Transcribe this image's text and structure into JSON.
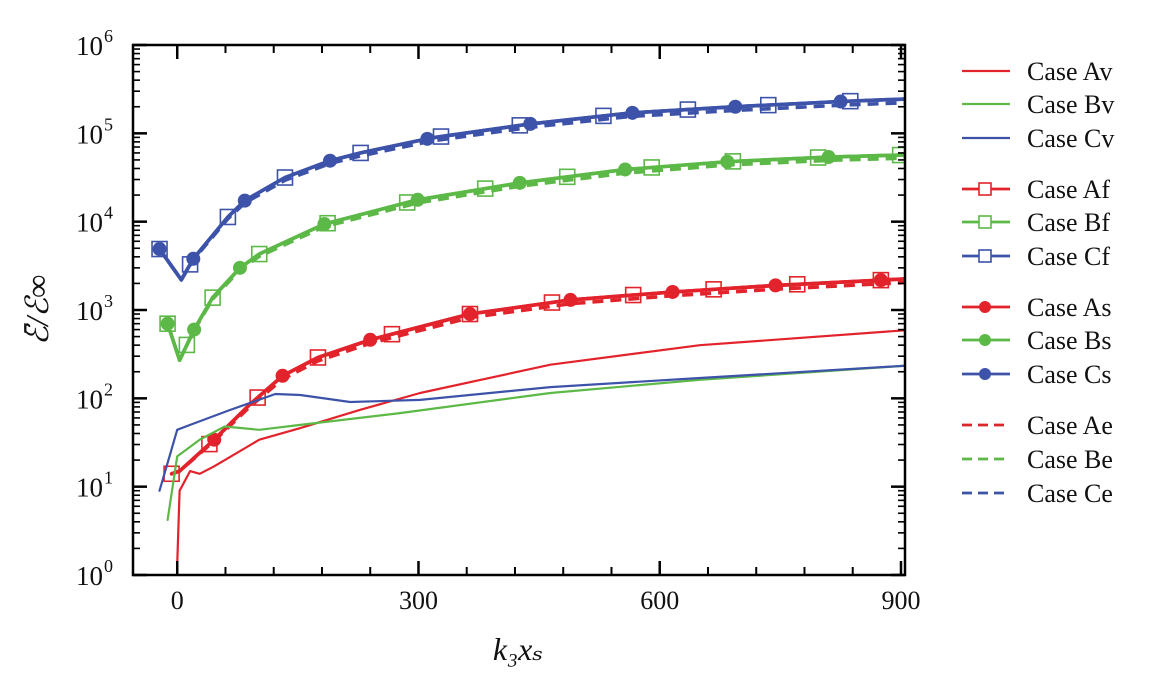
{
  "chart_data": {
    "type": "line",
    "xlabel": "k₃xₛ",
    "ylabel": "ℰ̄/ℰ∞",
    "xlim": [
      -55,
      905
    ],
    "ylim": [
      1,
      1000000
    ],
    "yscale": "log",
    "xticks": [
      0,
      300,
      600,
      900
    ],
    "xtick_labels": [
      "0",
      "300",
      "600",
      "900"
    ],
    "yticks": [
      1,
      10,
      100,
      1000,
      10000,
      100000,
      1000000
    ],
    "ytick_labels": [
      {
        "base": "10",
        "exp": "0"
      },
      {
        "base": "10",
        "exp": "1"
      },
      {
        "base": "10",
        "exp": "2"
      },
      {
        "base": "10",
        "exp": "3"
      },
      {
        "base": "10",
        "exp": "4"
      },
      {
        "base": "10",
        "exp": "5"
      },
      {
        "base": "10",
        "exp": "6"
      }
    ],
    "grid": false,
    "legend_placement": "right-outside",
    "colors": {
      "A": "#e3232b",
      "B": "#5cb947",
      "C": "#3d52a9"
    },
    "series": [
      {
        "name": "Case Av",
        "group": "A",
        "style": "v",
        "x": [
          0,
          3,
          16,
          28,
          46,
          102,
          153,
          227,
          302,
          464,
          650,
          906
        ],
        "y": [
          1.3,
          9,
          15,
          14,
          17,
          34,
          46,
          74,
          115,
          240,
          400,
          590
        ]
      },
      {
        "name": "Case Bv",
        "group": "B",
        "style": "v",
        "x": [
          -12,
          0,
          28,
          59,
          102,
          153,
          277,
          464,
          650,
          906
        ],
        "y": [
          4.2,
          22,
          34,
          48,
          44,
          50,
          68,
          115,
          162,
          234
        ]
      },
      {
        "name": "Case Cv",
        "group": "C",
        "style": "v",
        "x": [
          -22,
          -9,
          0,
          16,
          66,
          122,
          153,
          215,
          302,
          464,
          650,
          906
        ],
        "y": [
          9,
          23,
          44,
          50,
          74,
          112,
          109,
          91,
          96,
          134,
          170,
          234
        ]
      },
      {
        "name": "Case Af",
        "group": "A",
        "style": "f",
        "x": [
          -7,
          3,
          46,
          90,
          131,
          175,
          240,
          364,
          489,
          616,
          744,
          906
        ],
        "y": [
          14,
          15,
          34,
          85,
          180,
          290,
          460,
          900,
          1300,
          1600,
          1900,
          2250
        ],
        "markers_x": [
          -7,
          40,
          100,
          175,
          267,
          364,
          466,
          567,
          667,
          771,
          875
        ]
      },
      {
        "name": "Case Bf",
        "group": "B",
        "style": "f",
        "x": [
          -12,
          3,
          21,
          44,
          78,
          102,
          183,
          299,
          426,
          557,
          688,
          812,
          906
        ],
        "y": [
          700,
          270,
          600,
          1380,
          3000,
          4300,
          9400,
          17700,
          27500,
          39000,
          48000,
          54000,
          57000
        ],
        "markers_x": [
          -12,
          12,
          44,
          102,
          187,
          286,
          383,
          485,
          590,
          691,
          797,
          899
        ]
      },
      {
        "name": "Case Cf",
        "group": "C",
        "style": "f",
        "x": [
          -22,
          5,
          20,
          63,
          84,
          134,
          190,
          228,
          317,
          439,
          563,
          694,
          825,
          906
        ],
        "y": [
          4900,
          2200,
          3800,
          11300,
          17300,
          31600,
          49000,
          60000,
          89000,
          128000,
          170000,
          200000,
          229000,
          245000
        ],
        "markers_x": [
          -22,
          16,
          63,
          134,
          228,
          328,
          426,
          530,
          635,
          735,
          837
        ]
      },
      {
        "name": "Case As",
        "group": "A",
        "style": "s",
        "x": [
          -7,
          3,
          46,
          90,
          131,
          175,
          240,
          364,
          489,
          616,
          744,
          906
        ],
        "y": [
          14,
          15,
          34,
          85,
          180,
          290,
          460,
          900,
          1300,
          1600,
          1900,
          2250
        ],
        "markers_x": [
          46,
          131,
          240,
          364,
          489,
          616,
          744,
          875
        ]
      },
      {
        "name": "Case Bs",
        "group": "B",
        "style": "s",
        "x": [
          -12,
          3,
          21,
          44,
          78,
          102,
          183,
          299,
          426,
          557,
          688,
          812,
          906
        ],
        "y": [
          700,
          270,
          600,
          1380,
          3000,
          4300,
          9400,
          17700,
          27500,
          39000,
          48000,
          54000,
          57000
        ],
        "markers_x": [
          -12,
          21,
          78,
          183,
          299,
          426,
          557,
          684,
          810
        ]
      },
      {
        "name": "Case Cs",
        "group": "C",
        "style": "s",
        "x": [
          -22,
          5,
          20,
          63,
          84,
          134,
          190,
          228,
          317,
          439,
          563,
          694,
          825,
          906
        ],
        "y": [
          4900,
          2200,
          3800,
          11300,
          17300,
          31600,
          49000,
          60000,
          89000,
          128000,
          170000,
          200000,
          229000,
          245000
        ],
        "markers_x": [
          -22,
          20,
          84,
          190,
          311,
          439,
          566,
          694,
          825
        ]
      },
      {
        "name": "Case Ae",
        "group": "A",
        "style": "e",
        "x": [
          -7,
          3,
          46,
          90,
          131,
          175,
          240,
          364,
          489,
          616,
          744,
          906
        ],
        "y": [
          14,
          15,
          33,
          80,
          165,
          265,
          420,
          820,
          1180,
          1450,
          1720,
          2050
        ]
      },
      {
        "name": "Case Be",
        "group": "B",
        "style": "e",
        "x": [
          -12,
          3,
          21,
          44,
          78,
          102,
          183,
          299,
          426,
          557,
          688,
          812,
          906
        ],
        "y": [
          700,
          270,
          590,
          1330,
          2850,
          4050,
          8800,
          16300,
          25200,
          35500,
          44000,
          49500,
          52500
        ]
      },
      {
        "name": "Case Ce",
        "group": "C",
        "style": "e",
        "x": [
          -22,
          5,
          20,
          63,
          84,
          134,
          190,
          228,
          317,
          439,
          563,
          694,
          825,
          906
        ],
        "y": [
          4900,
          2200,
          3700,
          10800,
          16300,
          29500,
          45500,
          55500,
          82000,
          117000,
          155000,
          182000,
          208000,
          222000
        ]
      }
    ]
  }
}
